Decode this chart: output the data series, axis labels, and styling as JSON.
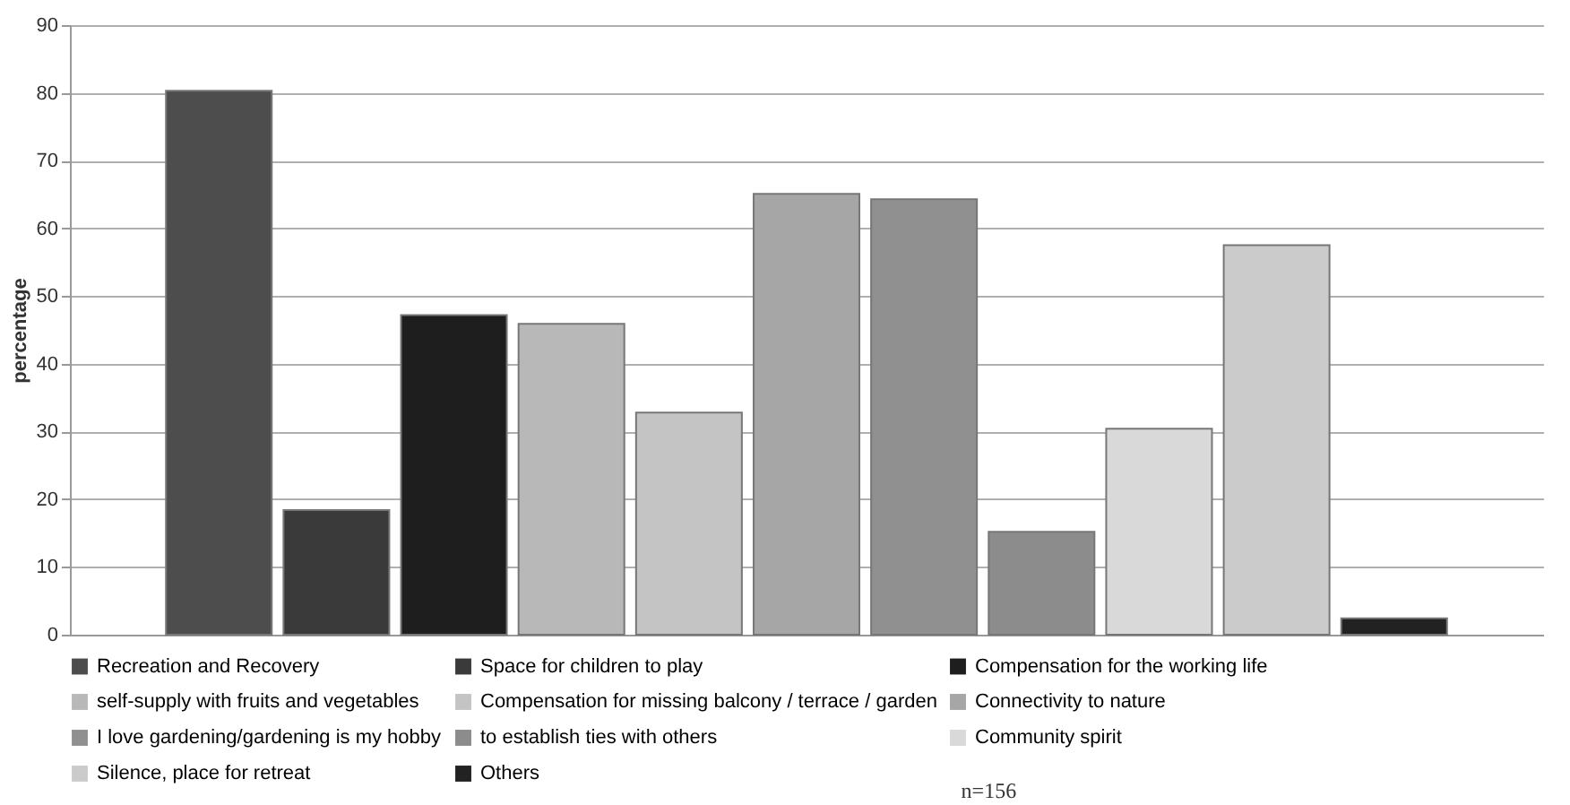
{
  "chart_data": {
    "type": "bar",
    "ylabel": "percentage",
    "categories": [
      null
    ],
    "series": [
      {
        "name": "Recreation and Recovery",
        "color": "#4d4d4d",
        "values": [
          80.3
        ]
      },
      {
        "name": "Space for children to play",
        "color": "#3a3a3a",
        "values": [
          18.4
        ]
      },
      {
        "name": "Compensation for the working life",
        "color": "#1e1e1e",
        "values": [
          47.2
        ]
      },
      {
        "name": "self-supply with fruits and vegetables",
        "color": "#b8b8b8",
        "values": [
          45.9
        ]
      },
      {
        "name": "Compensation for missing balcony / terrace / garden",
        "color": "#c4c4c4",
        "values": [
          32.8
        ]
      },
      {
        "name": "Connectivity to nature",
        "color": "#a6a6a6",
        "values": [
          65.1
        ]
      },
      {
        "name": "I love gardening/gardening is my hobby",
        "color": "#909090",
        "values": [
          64.3
        ]
      },
      {
        "name": "to establish ties with others",
        "color": "#8c8c8c",
        "values": [
          15.2
        ]
      },
      {
        "name": "Community spirit",
        "color": "#d9d9d9",
        "values": [
          30.4
        ]
      },
      {
        "name": "Silence, place for retreat",
        "color": "#cbcbcb",
        "values": [
          57.5
        ]
      },
      {
        "name": "Others",
        "color": "#222222",
        "values": [
          2.4
        ]
      }
    ],
    "ylim": [
      0,
      90
    ],
    "yticks": [
      0,
      10,
      20,
      30,
      40,
      50,
      60,
      70,
      80,
      90
    ],
    "grid": "y",
    "legend": "bottom",
    "annotations": [
      "n=156"
    ]
  }
}
